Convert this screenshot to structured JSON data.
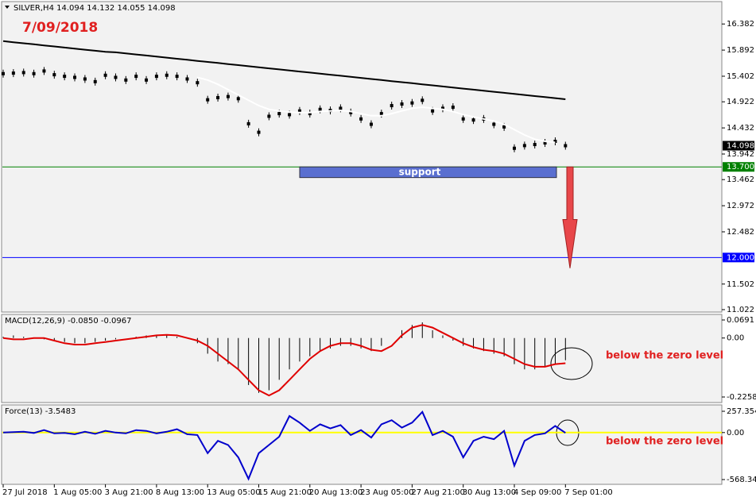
{
  "chart_data": [
    {
      "type": "line",
      "title": "SILVER,H4  14.094 14.132 14.055 14.098",
      "annotation": "7/09/2018",
      "ylim": [
        10.977,
        16.832
      ],
      "yticks": [
        16.382,
        15.892,
        15.402,
        14.922,
        14.432,
        13.942,
        13.462,
        12.972,
        12.482,
        11.502,
        11.022
      ],
      "current_price": 14.098,
      "levels": [
        {
          "value": 13.7,
          "label": "13.700",
          "color": "#008000"
        },
        {
          "value": 12,
          "label": "12.000",
          "color": "#0000ff"
        }
      ],
      "support": {
        "label": "support",
        "range": [
          13.7,
          13.5
        ],
        "color": "#5a6fd0"
      },
      "arrow_range": [
        13.7,
        11.8
      ],
      "series": [
        {
          "type": "candles",
          "color": "#000000",
          "values": [
            15.45,
            15.46,
            15.47,
            15.45,
            15.5,
            15.43,
            15.4,
            15.38,
            15.35,
            15.3,
            15.42,
            15.38,
            15.33,
            15.4,
            15.33,
            15.4,
            15.42,
            15.4,
            15.35,
            15.28,
            14.96,
            15.0,
            15.02,
            14.98,
            14.51,
            14.35,
            14.65,
            14.7,
            14.68,
            14.75,
            14.7,
            14.78,
            14.76,
            14.8,
            14.72,
            14.6,
            14.5,
            14.7,
            14.85,
            14.88,
            14.9,
            14.95,
            14.75,
            14.8,
            14.82,
            14.6,
            14.58,
            14.6,
            14.5,
            14.45,
            14.05,
            14.1,
            14.12,
            14.15,
            14.18,
            14.098
          ]
        },
        {
          "type": "line",
          "color": "#ffffff",
          "values": [
            null,
            null,
            null,
            null,
            null,
            null,
            null,
            null,
            null,
            null,
            null,
            null,
            null,
            null,
            null,
            null,
            null,
            null,
            null,
            15.38,
            15.33,
            15.25,
            15.15,
            15.05,
            14.95,
            14.85,
            14.78,
            14.75,
            14.73,
            14.72,
            14.72,
            14.74,
            14.75,
            14.76,
            14.74,
            14.7,
            14.66,
            14.66,
            14.7,
            14.75,
            14.8,
            14.82,
            14.8,
            14.78,
            14.74,
            14.68,
            14.64,
            14.6,
            14.56,
            14.5,
            14.4,
            14.3,
            14.22,
            14.18,
            14.16,
            null
          ]
        },
        {
          "type": "line",
          "color": "#000000",
          "values": [
            16.06,
            16.04,
            16.02,
            16.0,
            15.98,
            15.96,
            15.94,
            15.92,
            15.9,
            15.88,
            15.86,
            15.85,
            15.83,
            15.81,
            15.79,
            15.77,
            15.75,
            15.73,
            15.71,
            15.69,
            15.67,
            15.65,
            15.63,
            15.61,
            15.59,
            15.57,
            15.55,
            15.53,
            15.51,
            15.49,
            15.47,
            15.45,
            15.43,
            15.41,
            15.39,
            15.37,
            15.35,
            15.33,
            15.31,
            15.29,
            15.27,
            15.25,
            15.23,
            15.21,
            15.19,
            15.17,
            15.15,
            15.13,
            15.11,
            15.09,
            15.07,
            15.05,
            15.03,
            15.01,
            14.99,
            14.97
          ]
        }
      ]
    },
    {
      "type": "bar",
      "title": "MACD(12,26,9) -0.0850 -0.0967",
      "annotation": "below the zero level",
      "ylim": [
        -0.2258,
        0.0691
      ],
      "yticks": [
        0.0691,
        {
          "value": 0,
          "label": "0.00"
        },
        -0.2258
      ],
      "series": [
        {
          "type": "bar",
          "color": "#000000",
          "values": [
            0.005,
            0.01,
            0.005,
            0,
            -0.005,
            -0.01,
            -0.015,
            -0.02,
            -0.02,
            -0.015,
            -0.01,
            -0.005,
            0,
            0.005,
            0.01,
            0.01,
            0.01,
            0.005,
            0,
            -0.02,
            -0.06,
            -0.09,
            -0.1,
            -0.12,
            -0.18,
            -0.21,
            -0.2,
            -0.16,
            -0.12,
            -0.09,
            -0.07,
            -0.05,
            -0.04,
            -0.03,
            -0.03,
            -0.04,
            -0.05,
            -0.03,
            0,
            0.03,
            0.05,
            0.06,
            0.03,
            0.01,
            -0.01,
            -0.03,
            -0.04,
            -0.05,
            -0.06,
            -0.07,
            -0.1,
            -0.12,
            -0.12,
            -0.11,
            -0.1,
            -0.085
          ]
        },
        {
          "type": "line",
          "color": "#e00000",
          "values": [
            0,
            -0.005,
            -0.005,
            0,
            0,
            -0.01,
            -0.02,
            -0.025,
            -0.025,
            -0.02,
            -0.015,
            -0.01,
            -0.005,
            0,
            0.005,
            0.01,
            0.012,
            0.01,
            0,
            -0.01,
            -0.03,
            -0.06,
            -0.09,
            -0.12,
            -0.16,
            -0.2,
            -0.22,
            -0.2,
            -0.16,
            -0.12,
            -0.08,
            -0.05,
            -0.03,
            -0.02,
            -0.02,
            -0.03,
            -0.045,
            -0.05,
            -0.03,
            0.01,
            0.04,
            0.05,
            0.04,
            0.02,
            0,
            -0.02,
            -0.035,
            -0.045,
            -0.05,
            -0.06,
            -0.08,
            -0.1,
            -0.11,
            -0.11,
            -0.1,
            -0.0967
          ]
        }
      ]
    },
    {
      "type": "line",
      "title": "Force(13) -3.5483",
      "annotation": "below the zero level",
      "ylim": [
        -568.345,
        257.3541
      ],
      "yticks": [
        257.3541,
        {
          "value": 0,
          "label": "0.00"
        },
        -568.345
      ],
      "levels": [
        {
          "value": 0,
          "color": "#ffff00"
        }
      ],
      "categories": [
        "27 Jul 2018",
        null,
        null,
        null,
        null,
        "1 Aug 05:00",
        null,
        null,
        null,
        null,
        "3 Aug 21:00",
        null,
        null,
        null,
        null,
        "8 Aug 13:00",
        null,
        null,
        null,
        null,
        "13 Aug 05:00",
        null,
        null,
        null,
        null,
        "15 Aug 21:00",
        null,
        null,
        null,
        null,
        "20 Aug 13:00",
        null,
        null,
        null,
        null,
        "23 Aug 05:00",
        null,
        null,
        null,
        null,
        "27 Aug 21:00",
        null,
        null,
        null,
        null,
        "30 Aug 13:00",
        null,
        null,
        null,
        null,
        "4 Sep 09:00",
        null,
        null,
        null,
        null,
        "7 Sep 01:00"
      ],
      "series": [
        {
          "type": "line",
          "color": "#0000cc",
          "values": [
            0,
            5,
            10,
            -5,
            30,
            -10,
            -5,
            -20,
            10,
            -15,
            20,
            0,
            -10,
            30,
            20,
            -10,
            10,
            40,
            -20,
            -30,
            -250,
            -100,
            -150,
            -300,
            -560,
            -250,
            -150,
            -50,
            200,
            120,
            20,
            100,
            50,
            90,
            -30,
            30,
            -60,
            100,
            150,
            60,
            120,
            250,
            -30,
            20,
            -50,
            -300,
            -100,
            -50,
            -80,
            20,
            -400,
            -100,
            -30,
            -10,
            80,
            -3.5483
          ]
        }
      ]
    }
  ]
}
